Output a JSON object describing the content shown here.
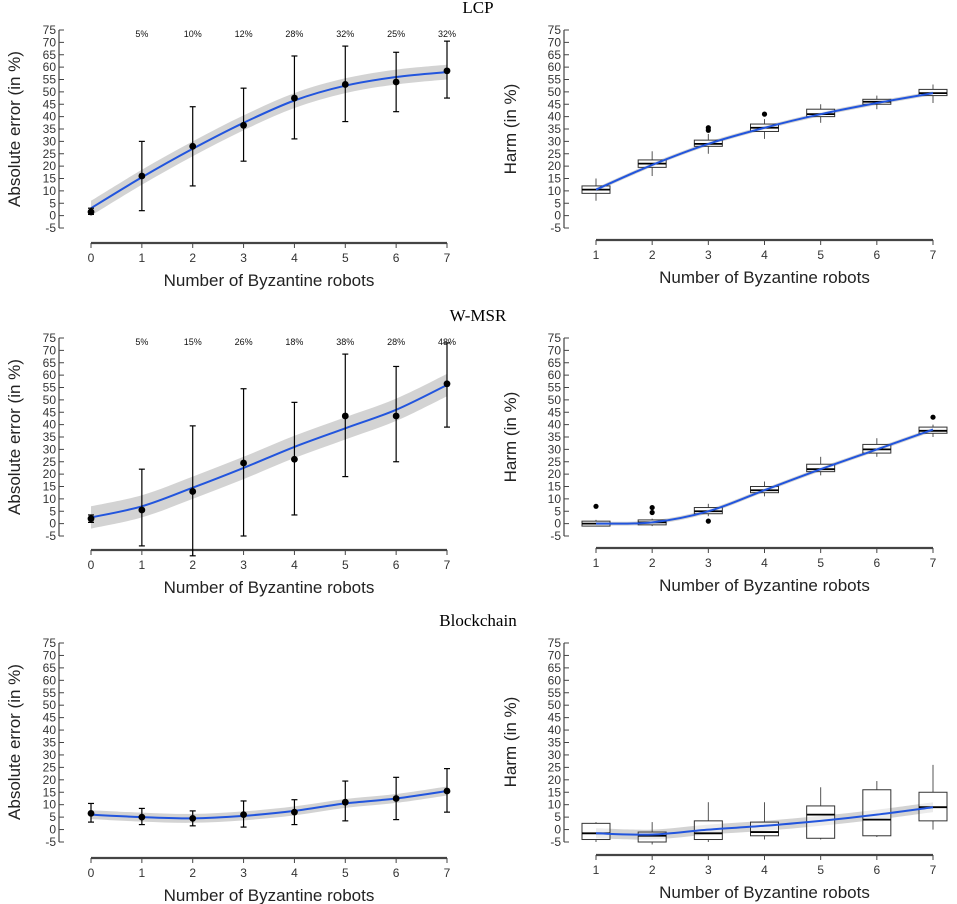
{
  "chart_data": [
    {
      "type": "line",
      "panel": "lcp-absolute-error",
      "title": "LCP",
      "xlabel": "Number of Byzantine robots",
      "ylabel": "Absolute error (in %)",
      "x": [
        0,
        1,
        2,
        3,
        4,
        5,
        6,
        7
      ],
      "means": [
        1.5,
        16,
        28,
        36.5,
        47.5,
        53,
        54,
        58.5
      ],
      "err_lo": [
        0.5,
        2,
        12,
        22,
        31,
        38,
        42,
        47.5
      ],
      "err_hi": [
        3,
        30,
        44,
        51.5,
        64.5,
        68.5,
        66,
        70.5
      ],
      "fit": [
        3,
        15.5,
        27,
        37.5,
        46.5,
        52.5,
        56,
        58
      ],
      "band": 3,
      "annotations": [
        "",
        "5%",
        "10%",
        "12%",
        "28%",
        "32%",
        "25%",
        "32%"
      ],
      "xlim": [
        0,
        7
      ],
      "ylim": [
        -5,
        75
      ],
      "yticks": [
        -5,
        0,
        5,
        10,
        15,
        20,
        25,
        30,
        35,
        40,
        45,
        50,
        55,
        60,
        65,
        70,
        75
      ]
    },
    {
      "type": "box",
      "panel": "lcp-harm",
      "xlabel": "Number of Byzantine robots",
      "ylabel": "Harm (in %)",
      "categories": [
        1,
        2,
        3,
        4,
        5,
        6,
        7
      ],
      "boxes": [
        {
          "min": 6,
          "q1": 9,
          "median": 10.5,
          "q3": 12,
          "max": 15,
          "outliers": []
        },
        {
          "min": 16,
          "q1": 19.5,
          "median": 21,
          "q3": 22.5,
          "max": 26,
          "outliers": []
        },
        {
          "min": 25,
          "q1": 28,
          "median": 29,
          "q3": 30.5,
          "max": 33,
          "outliers": [
            34.5,
            35.5
          ]
        },
        {
          "min": 31,
          "q1": 34,
          "median": 35.5,
          "q3": 37,
          "max": 39,
          "outliers": [
            41
          ]
        },
        {
          "min": 37.5,
          "q1": 40,
          "median": 41,
          "q3": 43,
          "max": 45,
          "outliers": []
        },
        {
          "min": 43,
          "q1": 45,
          "median": 46,
          "q3": 47,
          "max": 48.5,
          "outliers": []
        },
        {
          "min": 45.5,
          "q1": 48.5,
          "median": 49.5,
          "q3": 51,
          "max": 53,
          "outliers": []
        }
      ],
      "fit": [
        10.5,
        20.5,
        29,
        35.5,
        41,
        45.5,
        49.5
      ],
      "band": 0.8,
      "xlim": [
        1,
        7
      ],
      "ylim": [
        -5,
        75
      ],
      "yticks": [
        -5,
        0,
        5,
        10,
        15,
        20,
        25,
        30,
        35,
        40,
        45,
        50,
        55,
        60,
        65,
        70,
        75
      ]
    },
    {
      "type": "line",
      "panel": "wmsr-absolute-error",
      "title": "W-MSR",
      "xlabel": "Number of Byzantine robots",
      "ylabel": "Absolute error (in %)",
      "x": [
        0,
        1,
        2,
        3,
        4,
        5,
        6,
        7
      ],
      "means": [
        2,
        5.5,
        13,
        24.5,
        26,
        43.5,
        43.5,
        56.5
      ],
      "err_lo": [
        0.5,
        -9,
        -13,
        -5,
        3.5,
        19,
        25,
        39
      ],
      "err_hi": [
        3.5,
        22,
        39.5,
        54.5,
        49,
        68.5,
        63.5,
        73
      ],
      "fit": [
        2.5,
        7,
        14.5,
        22.5,
        31,
        38.5,
        46,
        56
      ],
      "band": 4.5,
      "annotations": [
        "",
        "5%",
        "15%",
        "26%",
        "18%",
        "38%",
        "28%",
        "48%"
      ],
      "xlim": [
        0,
        7
      ],
      "ylim": [
        -5,
        75
      ],
      "yticks": [
        -5,
        0,
        5,
        10,
        15,
        20,
        25,
        30,
        35,
        40,
        45,
        50,
        55,
        60,
        65,
        70,
        75
      ]
    },
    {
      "type": "box",
      "panel": "wmsr-harm",
      "xlabel": "Number of Byzantine robots",
      "ylabel": "Harm (in %)",
      "categories": [
        1,
        2,
        3,
        4,
        5,
        6,
        7
      ],
      "boxes": [
        {
          "min": -1,
          "q1": -1,
          "median": 0,
          "q3": 1,
          "max": 1.5,
          "outliers": [
            7
          ]
        },
        {
          "min": -1,
          "q1": -0.5,
          "median": 0.5,
          "q3": 1.5,
          "max": 2,
          "outliers": [
            4.5,
            6.5
          ]
        },
        {
          "min": 3,
          "q1": 4,
          "median": 5,
          "q3": 6.5,
          "max": 8,
          "outliers": [
            1
          ]
        },
        {
          "min": 11,
          "q1": 12.5,
          "median": 13.5,
          "q3": 15,
          "max": 17,
          "outliers": []
        },
        {
          "min": 19.5,
          "q1": 21,
          "median": 22,
          "q3": 24,
          "max": 27,
          "outliers": []
        },
        {
          "min": 27,
          "q1": 28.5,
          "median": 30,
          "q3": 32,
          "max": 34.5,
          "outliers": []
        },
        {
          "min": 35,
          "q1": 36.5,
          "median": 37.5,
          "q3": 39,
          "max": 40,
          "outliers": [
            43
          ]
        }
      ],
      "fit": [
        0,
        0.5,
        5,
        13.5,
        22,
        30,
        38
      ],
      "band": 0.8,
      "xlim": [
        1,
        7
      ],
      "ylim": [
        -5,
        75
      ],
      "yticks": [
        -5,
        0,
        5,
        10,
        15,
        20,
        25,
        30,
        35,
        40,
        45,
        50,
        55,
        60,
        65,
        70,
        75
      ]
    },
    {
      "type": "line",
      "panel": "blockchain-absolute-error",
      "title": "Blockchain",
      "xlabel": "Number of Byzantine robots",
      "ylabel": "Absolute error (in %)",
      "x": [
        0,
        1,
        2,
        3,
        4,
        5,
        6,
        7
      ],
      "means": [
        6.5,
        5,
        4.5,
        6,
        7,
        11,
        12.5,
        15.5
      ],
      "err_lo": [
        3,
        2,
        1.5,
        1,
        2,
        3.5,
        4,
        7
      ],
      "err_hi": [
        10.5,
        8.5,
        7.5,
        11.5,
        12,
        19.5,
        21,
        24.5
      ],
      "fit": [
        6,
        5,
        4.5,
        5.5,
        7.5,
        10.5,
        12.5,
        15.5
      ],
      "band": 1.8,
      "annotations": [],
      "xlim": [
        0,
        7
      ],
      "ylim": [
        -5,
        75
      ],
      "yticks": [
        -5,
        0,
        5,
        10,
        15,
        20,
        25,
        30,
        35,
        40,
        45,
        50,
        55,
        60,
        65,
        70,
        75
      ]
    },
    {
      "type": "box",
      "panel": "blockchain-harm",
      "xlabel": "Number of Byzantine robots",
      "ylabel": "Harm (in %)",
      "categories": [
        1,
        2,
        3,
        4,
        5,
        6,
        7
      ],
      "boxes": [
        {
          "min": -5,
          "q1": -4,
          "median": -1.5,
          "q3": 2.5,
          "max": 3,
          "outliers": []
        },
        {
          "min": -6,
          "q1": -5,
          "median": -2.5,
          "q3": -1,
          "max": 3,
          "outliers": []
        },
        {
          "min": -5,
          "q1": -4,
          "median": -1.5,
          "q3": 3.5,
          "max": 11,
          "outliers": []
        },
        {
          "min": -4,
          "q1": -2.5,
          "median": -1,
          "q3": 3,
          "max": 11,
          "outliers": []
        },
        {
          "min": -4,
          "q1": -3.5,
          "median": 6,
          "q3": 9.5,
          "max": 17,
          "outliers": []
        },
        {
          "min": -3,
          "q1": -2.5,
          "median": 4,
          "q3": 16,
          "max": 19.5,
          "outliers": []
        },
        {
          "min": 0,
          "q1": 3.5,
          "median": 9,
          "q3": 15,
          "max": 26,
          "outliers": []
        }
      ],
      "fit": [
        -1.5,
        -2,
        0,
        1.5,
        3.5,
        6,
        9
      ],
      "band": 2,
      "xlim": [
        1,
        7
      ],
      "ylim": [
        -5,
        75
      ],
      "yticks": [
        -5,
        0,
        5,
        10,
        15,
        20,
        25,
        30,
        35,
        40,
        45,
        50,
        55,
        60,
        65,
        70,
        75
      ]
    }
  ]
}
